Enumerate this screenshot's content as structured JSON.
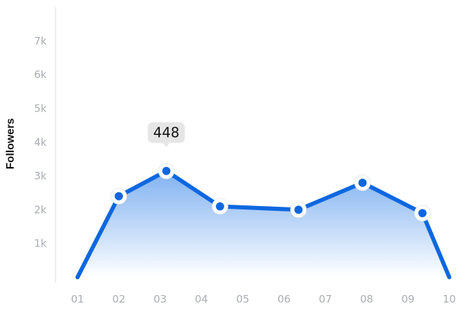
{
  "chart_data": {
    "type": "area",
    "ylabel": "Followers",
    "xlabel": "",
    "title": "",
    "categories": [
      "01",
      "02",
      "03",
      "04",
      "05",
      "06",
      "07",
      "08",
      "09",
      "10"
    ],
    "y_ticks": [
      {
        "value": 1000,
        "label": "1k"
      },
      {
        "value": 2000,
        "label": "2k"
      },
      {
        "value": 3000,
        "label": "3k"
      },
      {
        "value": 4000,
        "label": "4k"
      },
      {
        "value": 5000,
        "label": "5k"
      },
      {
        "value": 6000,
        "label": "6k"
      },
      {
        "value": 7000,
        "label": "7k"
      }
    ],
    "ylim": [
      0,
      8000
    ],
    "grid": false,
    "series": [
      {
        "points": [
          {
            "x": 1.0,
            "y": 0
          },
          {
            "x": 2.0,
            "y": 2400
          },
          {
            "x": 3.15,
            "y": 3150
          },
          {
            "x": 4.45,
            "y": 2100
          },
          {
            "x": 6.35,
            "y": 2000
          },
          {
            "x": 7.9,
            "y": 2800
          },
          {
            "x": 9.35,
            "y": 1900
          },
          {
            "x": 10.0,
            "y": 0
          }
        ],
        "markers": [
          1,
          2,
          3,
          4,
          5,
          6
        ]
      }
    ],
    "tooltip": {
      "point_index": 2,
      "text": "448"
    },
    "colors": {
      "line": "#0d67e0",
      "fill_top": "#7aaef0",
      "fill_bottom": "#ffffff",
      "axis": "#d9dcdf",
      "tick_text": "#a9adb3",
      "tooltip_bg": "#e6e6e6"
    }
  }
}
